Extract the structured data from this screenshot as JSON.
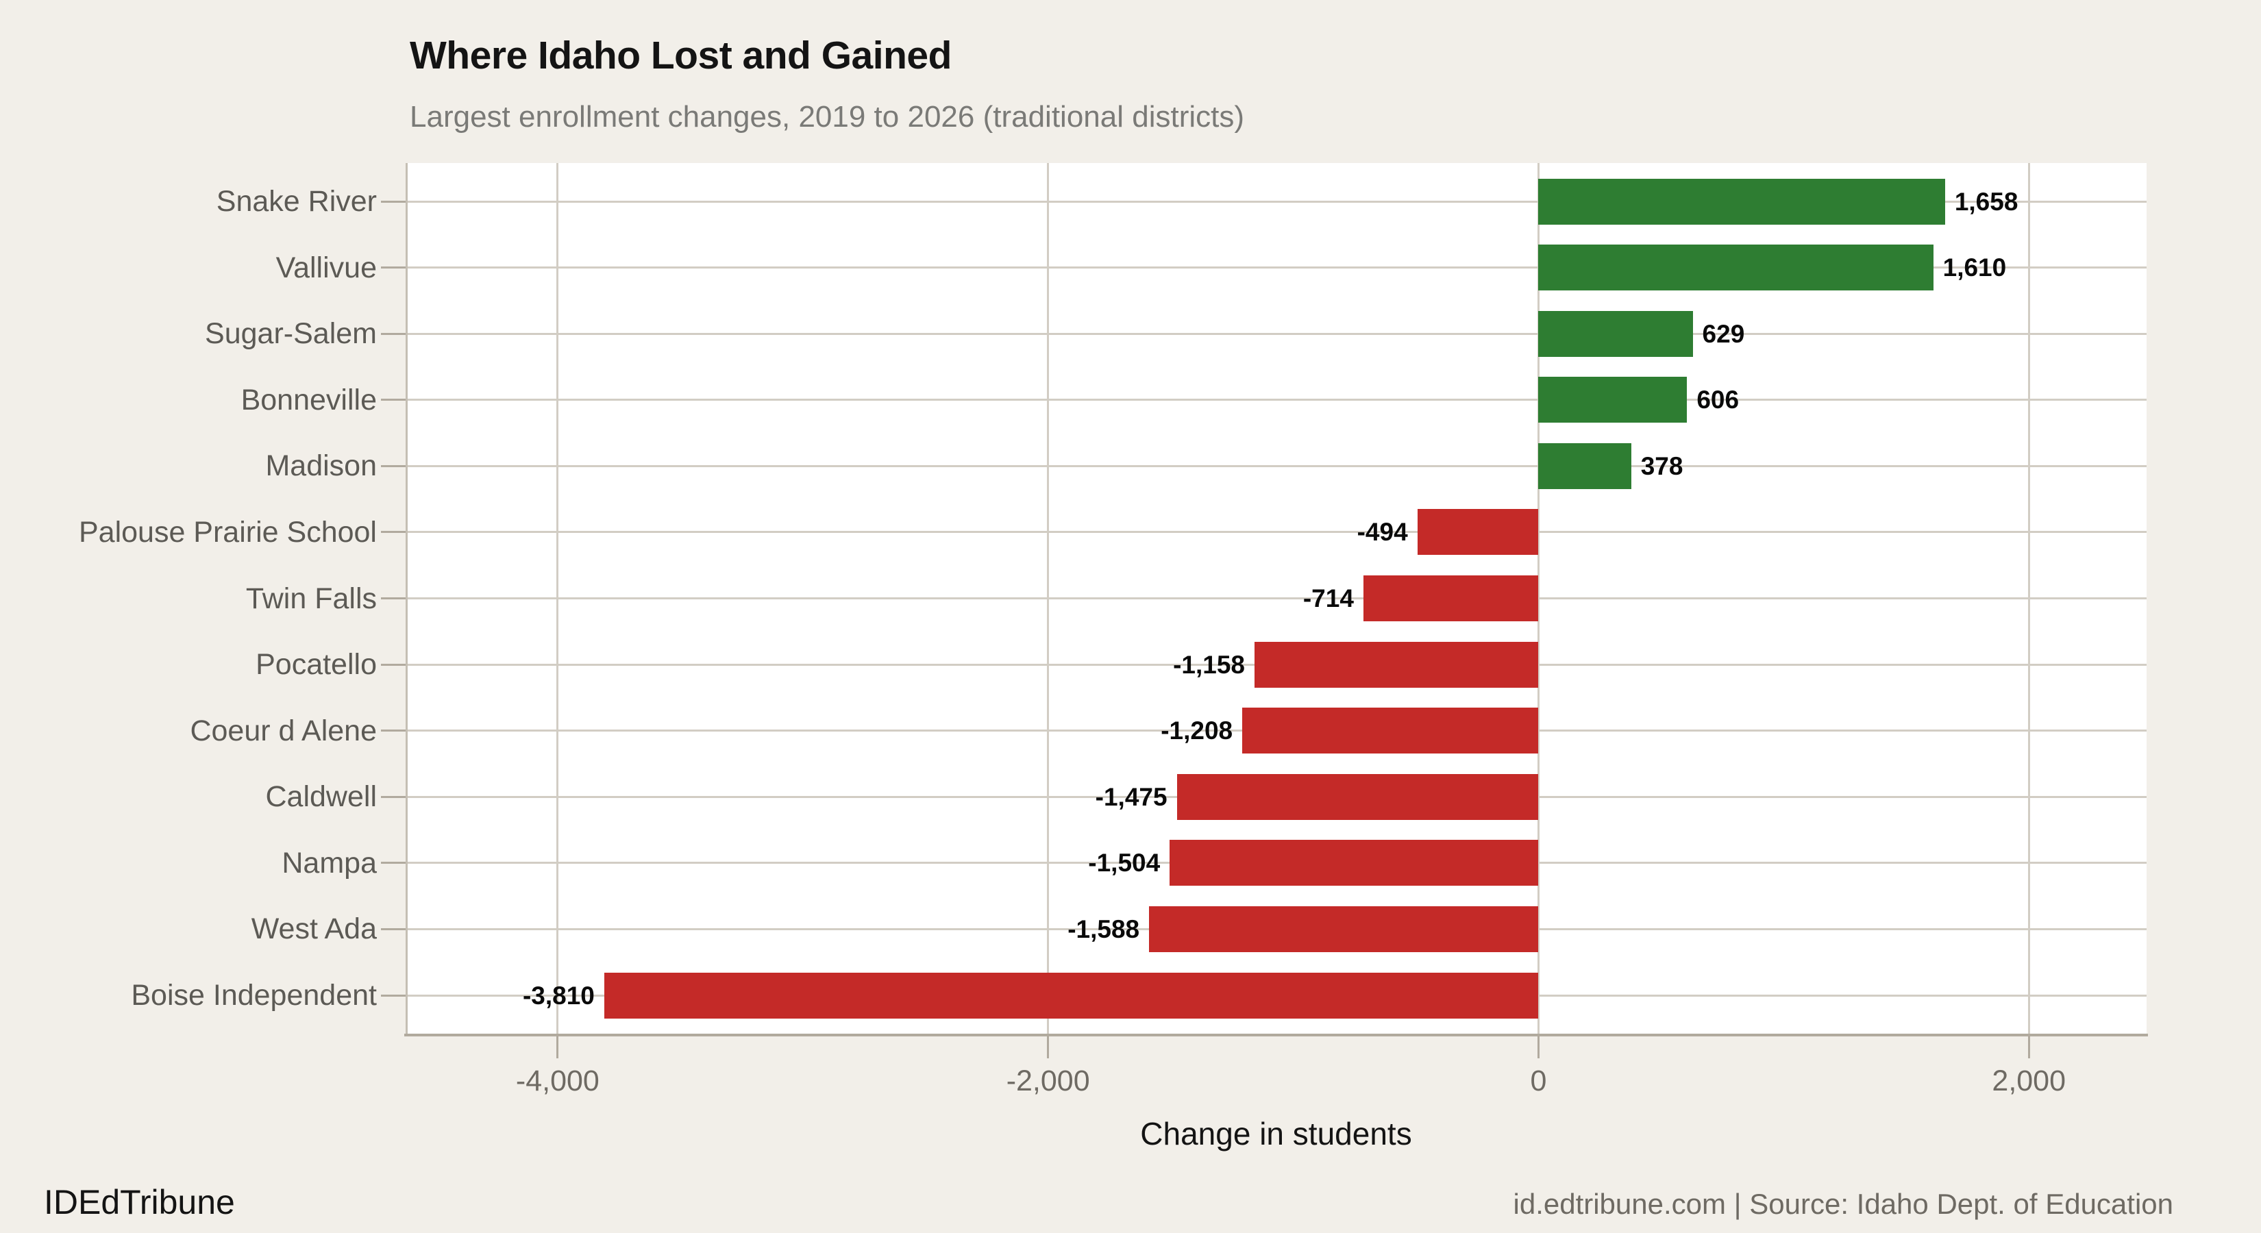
{
  "footer": {
    "brand": "IDEdTribune",
    "source": "id.edtribune.com | Source: Idaho Dept. of Education"
  },
  "colors": {
    "background": "#f2efe9",
    "plot_bg": "#ffffff",
    "grid": "#d2cdc4",
    "grid_strong": "#c5bfb4",
    "axis": "#b1aa9e",
    "title": "#141414",
    "subtitle": "#7a7a77",
    "category_label": "#5c5a55",
    "tick_label": "#6e6a63",
    "value_label": "#0a0a0a",
    "footer_source": "#6e6a63",
    "positive": "#2e7d32",
    "negative": "#c42a28"
  },
  "chart_data": {
    "type": "bar",
    "orientation": "horizontal",
    "title": "Where Idaho Lost and Gained",
    "subtitle": "Largest enrollment changes, 2019 to 2026 (traditional districts)",
    "xlabel": "Change in students",
    "ylabel": "",
    "grid": true,
    "legend": false,
    "xlim": [
      -4620,
      2480
    ],
    "categories": [
      "Snake River",
      "Vallivue",
      "Sugar-Salem",
      "Bonneville",
      "Madison",
      "Palouse Prairie School",
      "Twin Falls",
      "Pocatello",
      "Coeur d Alene",
      "Caldwell",
      "Nampa",
      "West Ada",
      "Boise Independent"
    ],
    "values": [
      1658,
      1610,
      629,
      606,
      378,
      -494,
      -714,
      -1158,
      -1208,
      -1475,
      -1504,
      -1588,
      -3810
    ],
    "value_labels": [
      "1,658",
      "1,610",
      "629",
      "606",
      "378",
      "-494",
      "-714",
      "-1,158",
      "-1,208",
      "-1,475",
      "-1,504",
      "-1,588",
      "-3,810"
    ],
    "x_ticks": [
      {
        "value": -4000,
        "label": "-4,000"
      },
      {
        "value": -2000,
        "label": "-2,000"
      },
      {
        "value": 0,
        "label": "0"
      },
      {
        "value": 2000,
        "label": "2,000"
      }
    ]
  }
}
